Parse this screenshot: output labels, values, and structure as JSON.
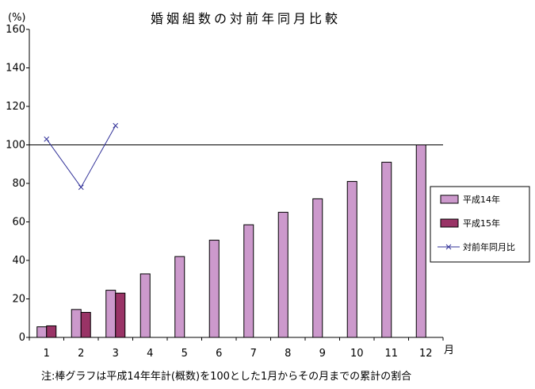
{
  "chart_data": {
    "type": "bar",
    "title": "婚姻組数の対前年同月比較",
    "ylabel": "(%)",
    "xlabel": "月",
    "ylim": [
      0,
      160
    ],
    "yticks": [
      "0",
      "20",
      "40",
      "60",
      "80",
      "100",
      "120",
      "140",
      "160"
    ],
    "categories": [
      "1",
      "2",
      "3",
      "4",
      "5",
      "6",
      "7",
      "8",
      "9",
      "10",
      "11",
      "12"
    ],
    "series": [
      {
        "name": "平成14年",
        "kind": "bar",
        "color": "#cc99cc",
        "values": [
          5.5,
          14.5,
          24.5,
          33,
          42,
          50.5,
          58.5,
          65,
          72,
          81,
          91,
          100
        ]
      },
      {
        "name": "平成15年",
        "kind": "bar",
        "color": "#993366",
        "values": [
          6,
          13,
          23,
          null,
          null,
          null,
          null,
          null,
          null,
          null,
          null,
          null
        ]
      },
      {
        "name": "対前年同月比",
        "kind": "line",
        "color": "#333399",
        "values": [
          103,
          78,
          110,
          null,
          null,
          null,
          null,
          null,
          null,
          null,
          null,
          null
        ]
      }
    ],
    "reference_line": 100,
    "legend_position": "right",
    "note": "注:棒グラフは平成14年年計(概数)を100とした1月からその月までの累計の割合"
  }
}
